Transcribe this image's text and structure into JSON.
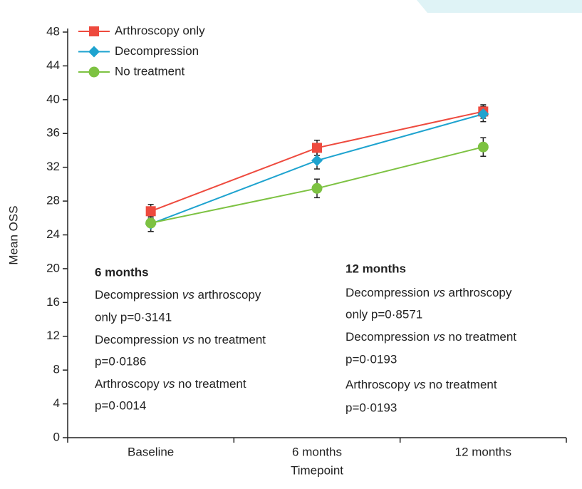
{
  "chart_data": {
    "type": "line",
    "x_label": "Timepoint",
    "y_label": "Mean OSS",
    "categories": [
      "Baseline",
      "6 months",
      "12 months"
    ],
    "series": [
      {
        "name": "Arthroscopy only",
        "color": "#ee4a3e",
        "marker": "square",
        "values": [
          26.8,
          34.3,
          38.6
        ],
        "errors": [
          0.8,
          0.9,
          0.8
        ]
      },
      {
        "name": "Decompression",
        "color": "#1ea3cf",
        "marker": "diamond",
        "values": [
          25.3,
          32.8,
          38.3
        ],
        "errors": [
          0.9,
          1.0,
          0.9
        ]
      },
      {
        "name": "No treatment",
        "color": "#7dc242",
        "marker": "circle",
        "values": [
          25.4,
          29.5,
          34.4
        ],
        "errors": [
          1.0,
          1.1,
          1.1
        ]
      }
    ],
    "ylim": [
      0,
      48
    ],
    "yticks": [
      0,
      4,
      8,
      12,
      16,
      20,
      24,
      28,
      32,
      36,
      40,
      44,
      48
    ],
    "legend": "upper-left",
    "annotations": [
      {
        "title": "6 months",
        "lines": [
          "Decompression vs arthroscopy",
          "only p=0·3141",
          "Decompression vs no treatment",
          "p=0·0186",
          "Arthroscopy vs no treatment",
          "p=0·0014"
        ]
      },
      {
        "title": "12 months",
        "lines": [
          "Decompression vs arthroscopy",
          "only p=0·8571",
          "Decompression vs no treatment",
          "p=0·0193",
          "Arthroscopy vs no treatment",
          "p=0·0193"
        ]
      }
    ]
  }
}
